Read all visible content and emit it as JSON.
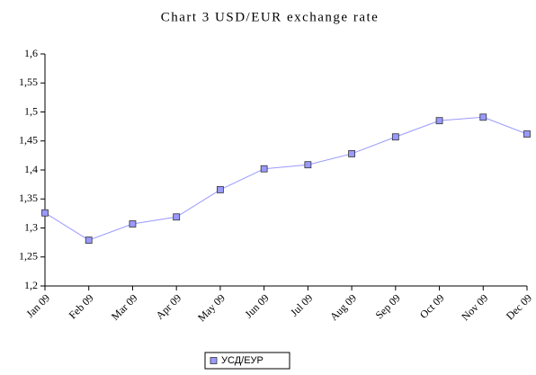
{
  "chart_data": {
    "type": "line",
    "title": "Chart 3 USD/EUR exchange rate",
    "categories": [
      "Jan 09",
      "Feb 09",
      "Mar 09",
      "Apr 09",
      "May 09",
      "Jun 09",
      "Jul 09",
      "Aug 09",
      "Sep 09",
      "Oct 09",
      "Nov 09",
      "Dec 09"
    ],
    "series": [
      {
        "name": "УСД/ЕУР",
        "color": "#9999ff",
        "values": [
          1.326,
          1.279,
          1.307,
          1.319,
          1.366,
          1.402,
          1.409,
          1.428,
          1.457,
          1.485,
          1.491,
          1.462
        ]
      }
    ],
    "ylim": [
      1.2,
      1.6
    ],
    "yticks": [
      {
        "value": 1.2,
        "label": "1,2"
      },
      {
        "value": 1.25,
        "label": "1,25"
      },
      {
        "value": 1.3,
        "label": "1,3"
      },
      {
        "value": 1.35,
        "label": "1,35"
      },
      {
        "value": 1.4,
        "label": "1,4"
      },
      {
        "value": 1.45,
        "label": "1,45"
      },
      {
        "value": 1.5,
        "label": "1,5"
      },
      {
        "value": 1.55,
        "label": "1,55"
      },
      {
        "value": 1.6,
        "label": "1,6"
      }
    ],
    "legend": "bottom"
  }
}
